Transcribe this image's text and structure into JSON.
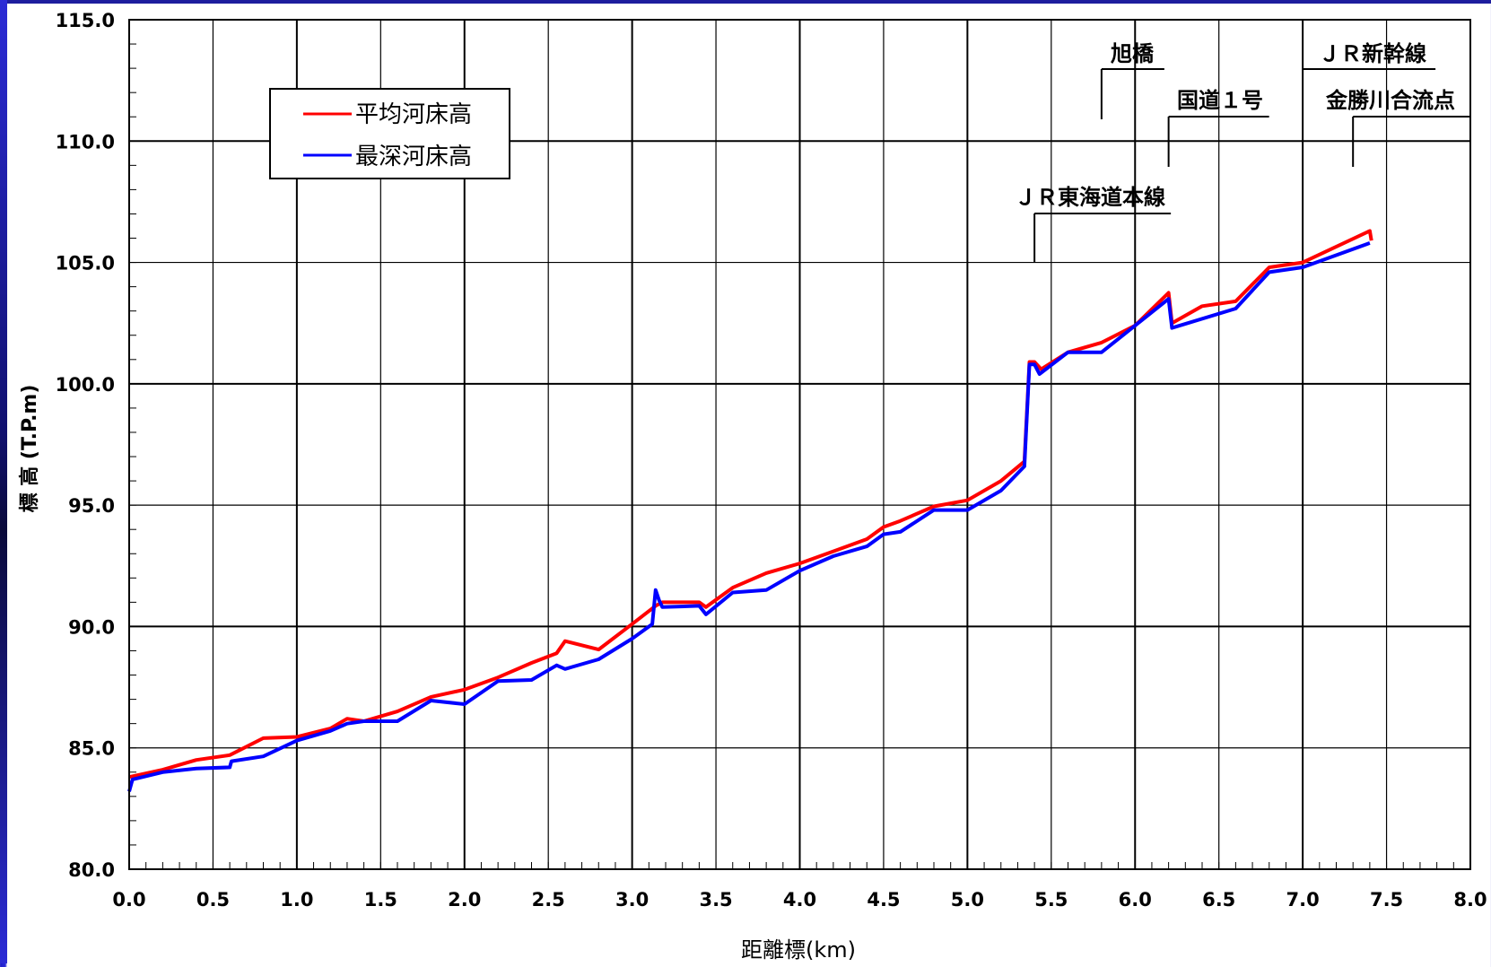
{
  "chart_data": {
    "type": "line",
    "xlabel": "距離標(km)",
    "ylabel": "標 高 (T.P.m)",
    "xlim": [
      0,
      8
    ],
    "ylim": [
      80,
      115
    ],
    "x_ticks": [
      "0.0",
      "0.5",
      "1.0",
      "1.5",
      "2.0",
      "2.5",
      "3.0",
      "3.5",
      "4.0",
      "4.5",
      "5.0",
      "5.5",
      "6.0",
      "6.5",
      "7.0",
      "7.5",
      "8.0"
    ],
    "y_ticks": [
      "80.0",
      "85.0",
      "90.0",
      "95.0",
      "100.0",
      "105.0",
      "110.0",
      "115.0"
    ],
    "grid": true,
    "legend_position": "top-left",
    "series": [
      {
        "name": "平均河床高",
        "color": "#ff0000",
        "points": [
          [
            0.0,
            83.8
          ],
          [
            0.2,
            84.1
          ],
          [
            0.4,
            84.5
          ],
          [
            0.6,
            84.7
          ],
          [
            0.8,
            85.4
          ],
          [
            1.0,
            85.45
          ],
          [
            1.2,
            85.8
          ],
          [
            1.3,
            86.2
          ],
          [
            1.4,
            86.1
          ],
          [
            1.6,
            86.5
          ],
          [
            1.8,
            87.1
          ],
          [
            2.0,
            87.4
          ],
          [
            2.2,
            87.9
          ],
          [
            2.4,
            88.5
          ],
          [
            2.55,
            88.9
          ],
          [
            2.6,
            89.4
          ],
          [
            2.8,
            89.05
          ],
          [
            3.0,
            90.1
          ],
          [
            3.14,
            90.85
          ],
          [
            3.18,
            91.0
          ],
          [
            3.4,
            91.0
          ],
          [
            3.44,
            90.8
          ],
          [
            3.6,
            91.6
          ],
          [
            3.8,
            92.2
          ],
          [
            4.0,
            92.6
          ],
          [
            4.2,
            93.1
          ],
          [
            4.4,
            93.6
          ],
          [
            4.5,
            94.1
          ],
          [
            4.6,
            94.35
          ],
          [
            4.8,
            94.95
          ],
          [
            5.0,
            95.2
          ],
          [
            5.2,
            96.0
          ],
          [
            5.34,
            96.8
          ],
          [
            5.37,
            100.9
          ],
          [
            5.4,
            100.9
          ],
          [
            5.44,
            100.6
          ],
          [
            5.6,
            101.3
          ],
          [
            5.8,
            101.7
          ],
          [
            6.0,
            102.4
          ],
          [
            6.2,
            103.75
          ],
          [
            6.22,
            102.5
          ],
          [
            6.4,
            103.2
          ],
          [
            6.6,
            103.4
          ],
          [
            6.8,
            104.8
          ],
          [
            7.0,
            105.0
          ],
          [
            7.4,
            106.3
          ],
          [
            7.41,
            105.9
          ]
        ]
      },
      {
        "name": "最深河床高",
        "color": "#0000ff",
        "points": [
          [
            0.0,
            83.2
          ],
          [
            0.02,
            83.7
          ],
          [
            0.2,
            84.0
          ],
          [
            0.4,
            84.15
          ],
          [
            0.6,
            84.2
          ],
          [
            0.61,
            84.45
          ],
          [
            0.8,
            84.65
          ],
          [
            1.0,
            85.3
          ],
          [
            1.2,
            85.7
          ],
          [
            1.3,
            86.0
          ],
          [
            1.4,
            86.1
          ],
          [
            1.6,
            86.1
          ],
          [
            1.8,
            86.95
          ],
          [
            2.0,
            86.8
          ],
          [
            2.2,
            87.75
          ],
          [
            2.4,
            87.8
          ],
          [
            2.55,
            88.4
          ],
          [
            2.6,
            88.25
          ],
          [
            2.8,
            88.65
          ],
          [
            3.0,
            89.5
          ],
          [
            3.12,
            90.1
          ],
          [
            3.14,
            91.5
          ],
          [
            3.16,
            91.1
          ],
          [
            3.18,
            90.8
          ],
          [
            3.4,
            90.85
          ],
          [
            3.44,
            90.5
          ],
          [
            3.6,
            91.4
          ],
          [
            3.8,
            91.5
          ],
          [
            4.0,
            92.3
          ],
          [
            4.2,
            92.9
          ],
          [
            4.4,
            93.3
          ],
          [
            4.5,
            93.8
          ],
          [
            4.6,
            93.9
          ],
          [
            4.8,
            94.8
          ],
          [
            5.0,
            94.8
          ],
          [
            5.2,
            95.6
          ],
          [
            5.34,
            96.6
          ],
          [
            5.37,
            100.8
          ],
          [
            5.4,
            100.8
          ],
          [
            5.43,
            100.4
          ],
          [
            5.6,
            101.3
          ],
          [
            5.8,
            101.3
          ],
          [
            6.0,
            102.4
          ],
          [
            6.2,
            103.5
          ],
          [
            6.22,
            102.3
          ],
          [
            6.6,
            103.1
          ],
          [
            6.8,
            104.6
          ],
          [
            7.0,
            104.8
          ],
          [
            7.4,
            105.8
          ]
        ]
      }
    ],
    "annotations": [
      {
        "label": "旭橋",
        "x": 5.8
      },
      {
        "label": "ＪＲ新幹線",
        "x": 7.0
      },
      {
        "label": "国道１号",
        "x": 6.2
      },
      {
        "label": "金勝川合流点",
        "x": 7.3
      },
      {
        "label": "ＪＲ東海道本線",
        "x": 5.4
      }
    ]
  }
}
